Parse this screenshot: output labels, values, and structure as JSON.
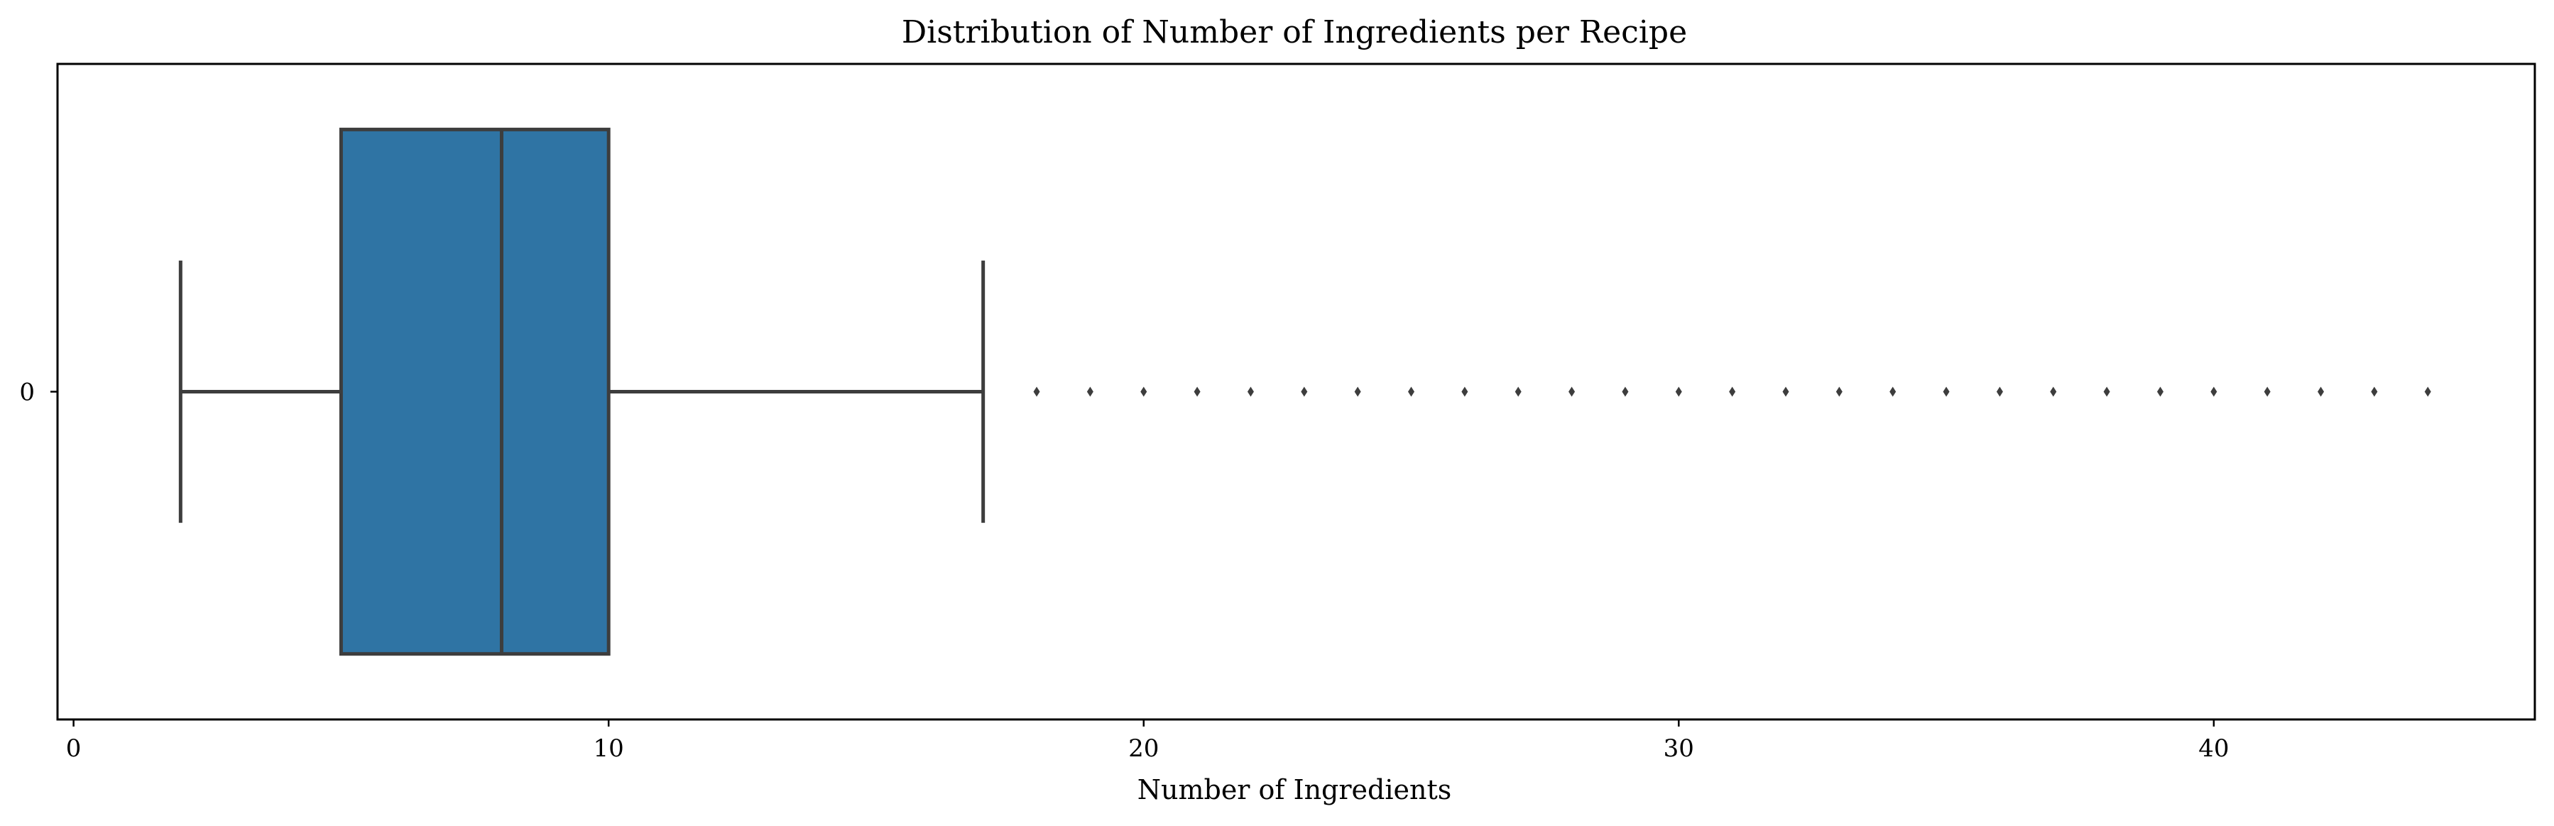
{
  "chart_data": {
    "type": "box",
    "orientation": "horizontal",
    "title": "Distribution of Number of Ingredients per Recipe",
    "xlabel": "Number of Ingredients",
    "ylabel": "",
    "xlim": [
      -0.3,
      46.0
    ],
    "x_ticks": [
      0,
      10,
      20,
      30,
      40
    ],
    "y_ticks": [
      "0"
    ],
    "grid": false,
    "legend": "none",
    "box_color": "#2f74a4",
    "line_color": "#3d3d3d",
    "boxes": [
      {
        "category": "0",
        "whisker_low": 2,
        "q1": 5,
        "median": 8,
        "q3": 10,
        "whisker_high": 17,
        "outliers": [
          18,
          19,
          20,
          21,
          22,
          23,
          24,
          25,
          26,
          27,
          28,
          29,
          30,
          31,
          32,
          33,
          34,
          35,
          36,
          37,
          38,
          39,
          40,
          41,
          42,
          43,
          44
        ]
      }
    ]
  }
}
